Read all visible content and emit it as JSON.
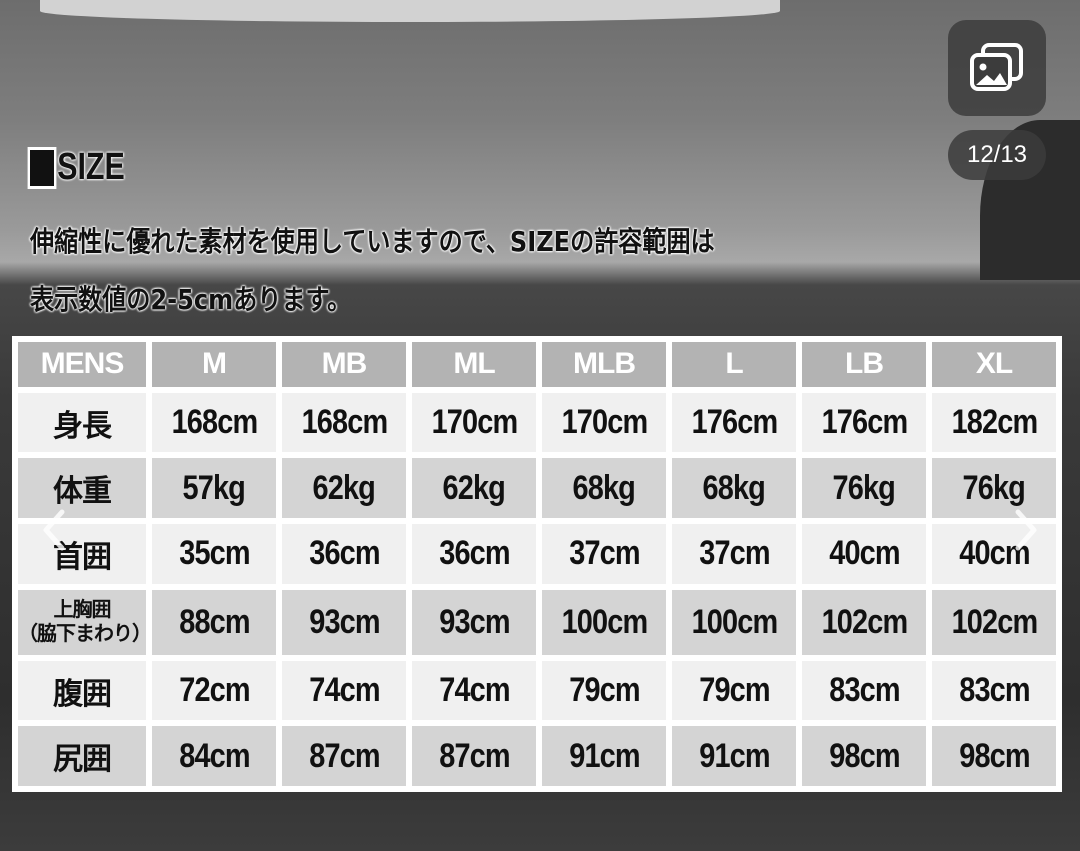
{
  "viewer": {
    "counter": "12/13",
    "gallery_icon": "image-gallery-icon",
    "prev_icon": "chevron-left-icon",
    "next_icon": "chevron-right-icon"
  },
  "heading": "SIZE",
  "description": [
    "伸縮性に優れた素材を使用していますので、SIZEの許容範囲は",
    "表示数値の2-5cmあります。"
  ],
  "table": {
    "headers": [
      "MENS",
      "M",
      "MB",
      "ML",
      "MLB",
      "L",
      "LB",
      "XL"
    ],
    "rows": [
      {
        "label": "身長",
        "sub": "",
        "values": [
          "168cm",
          "168cm",
          "170cm",
          "170cm",
          "176cm",
          "176cm",
          "182cm"
        ]
      },
      {
        "label": "体重",
        "sub": "",
        "values": [
          "57kg",
          "62kg",
          "62kg",
          "68kg",
          "68kg",
          "76kg",
          "76kg"
        ]
      },
      {
        "label": "首囲",
        "sub": "",
        "values": [
          "35cm",
          "36cm",
          "36cm",
          "37cm",
          "37cm",
          "40cm",
          "40cm"
        ]
      },
      {
        "label": "上胸囲",
        "sub": "（脇下まわり）",
        "values": [
          "88cm",
          "93cm",
          "93cm",
          "100cm",
          "100cm",
          "102cm",
          "102cm"
        ]
      },
      {
        "label": "腹囲",
        "sub": "",
        "values": [
          "72cm",
          "74cm",
          "74cm",
          "79cm",
          "79cm",
          "83cm",
          "83cm"
        ]
      },
      {
        "label": "尻囲",
        "sub": "",
        "values": [
          "84cm",
          "87cm",
          "87cm",
          "91cm",
          "91cm",
          "98cm",
          "98cm"
        ]
      }
    ]
  }
}
